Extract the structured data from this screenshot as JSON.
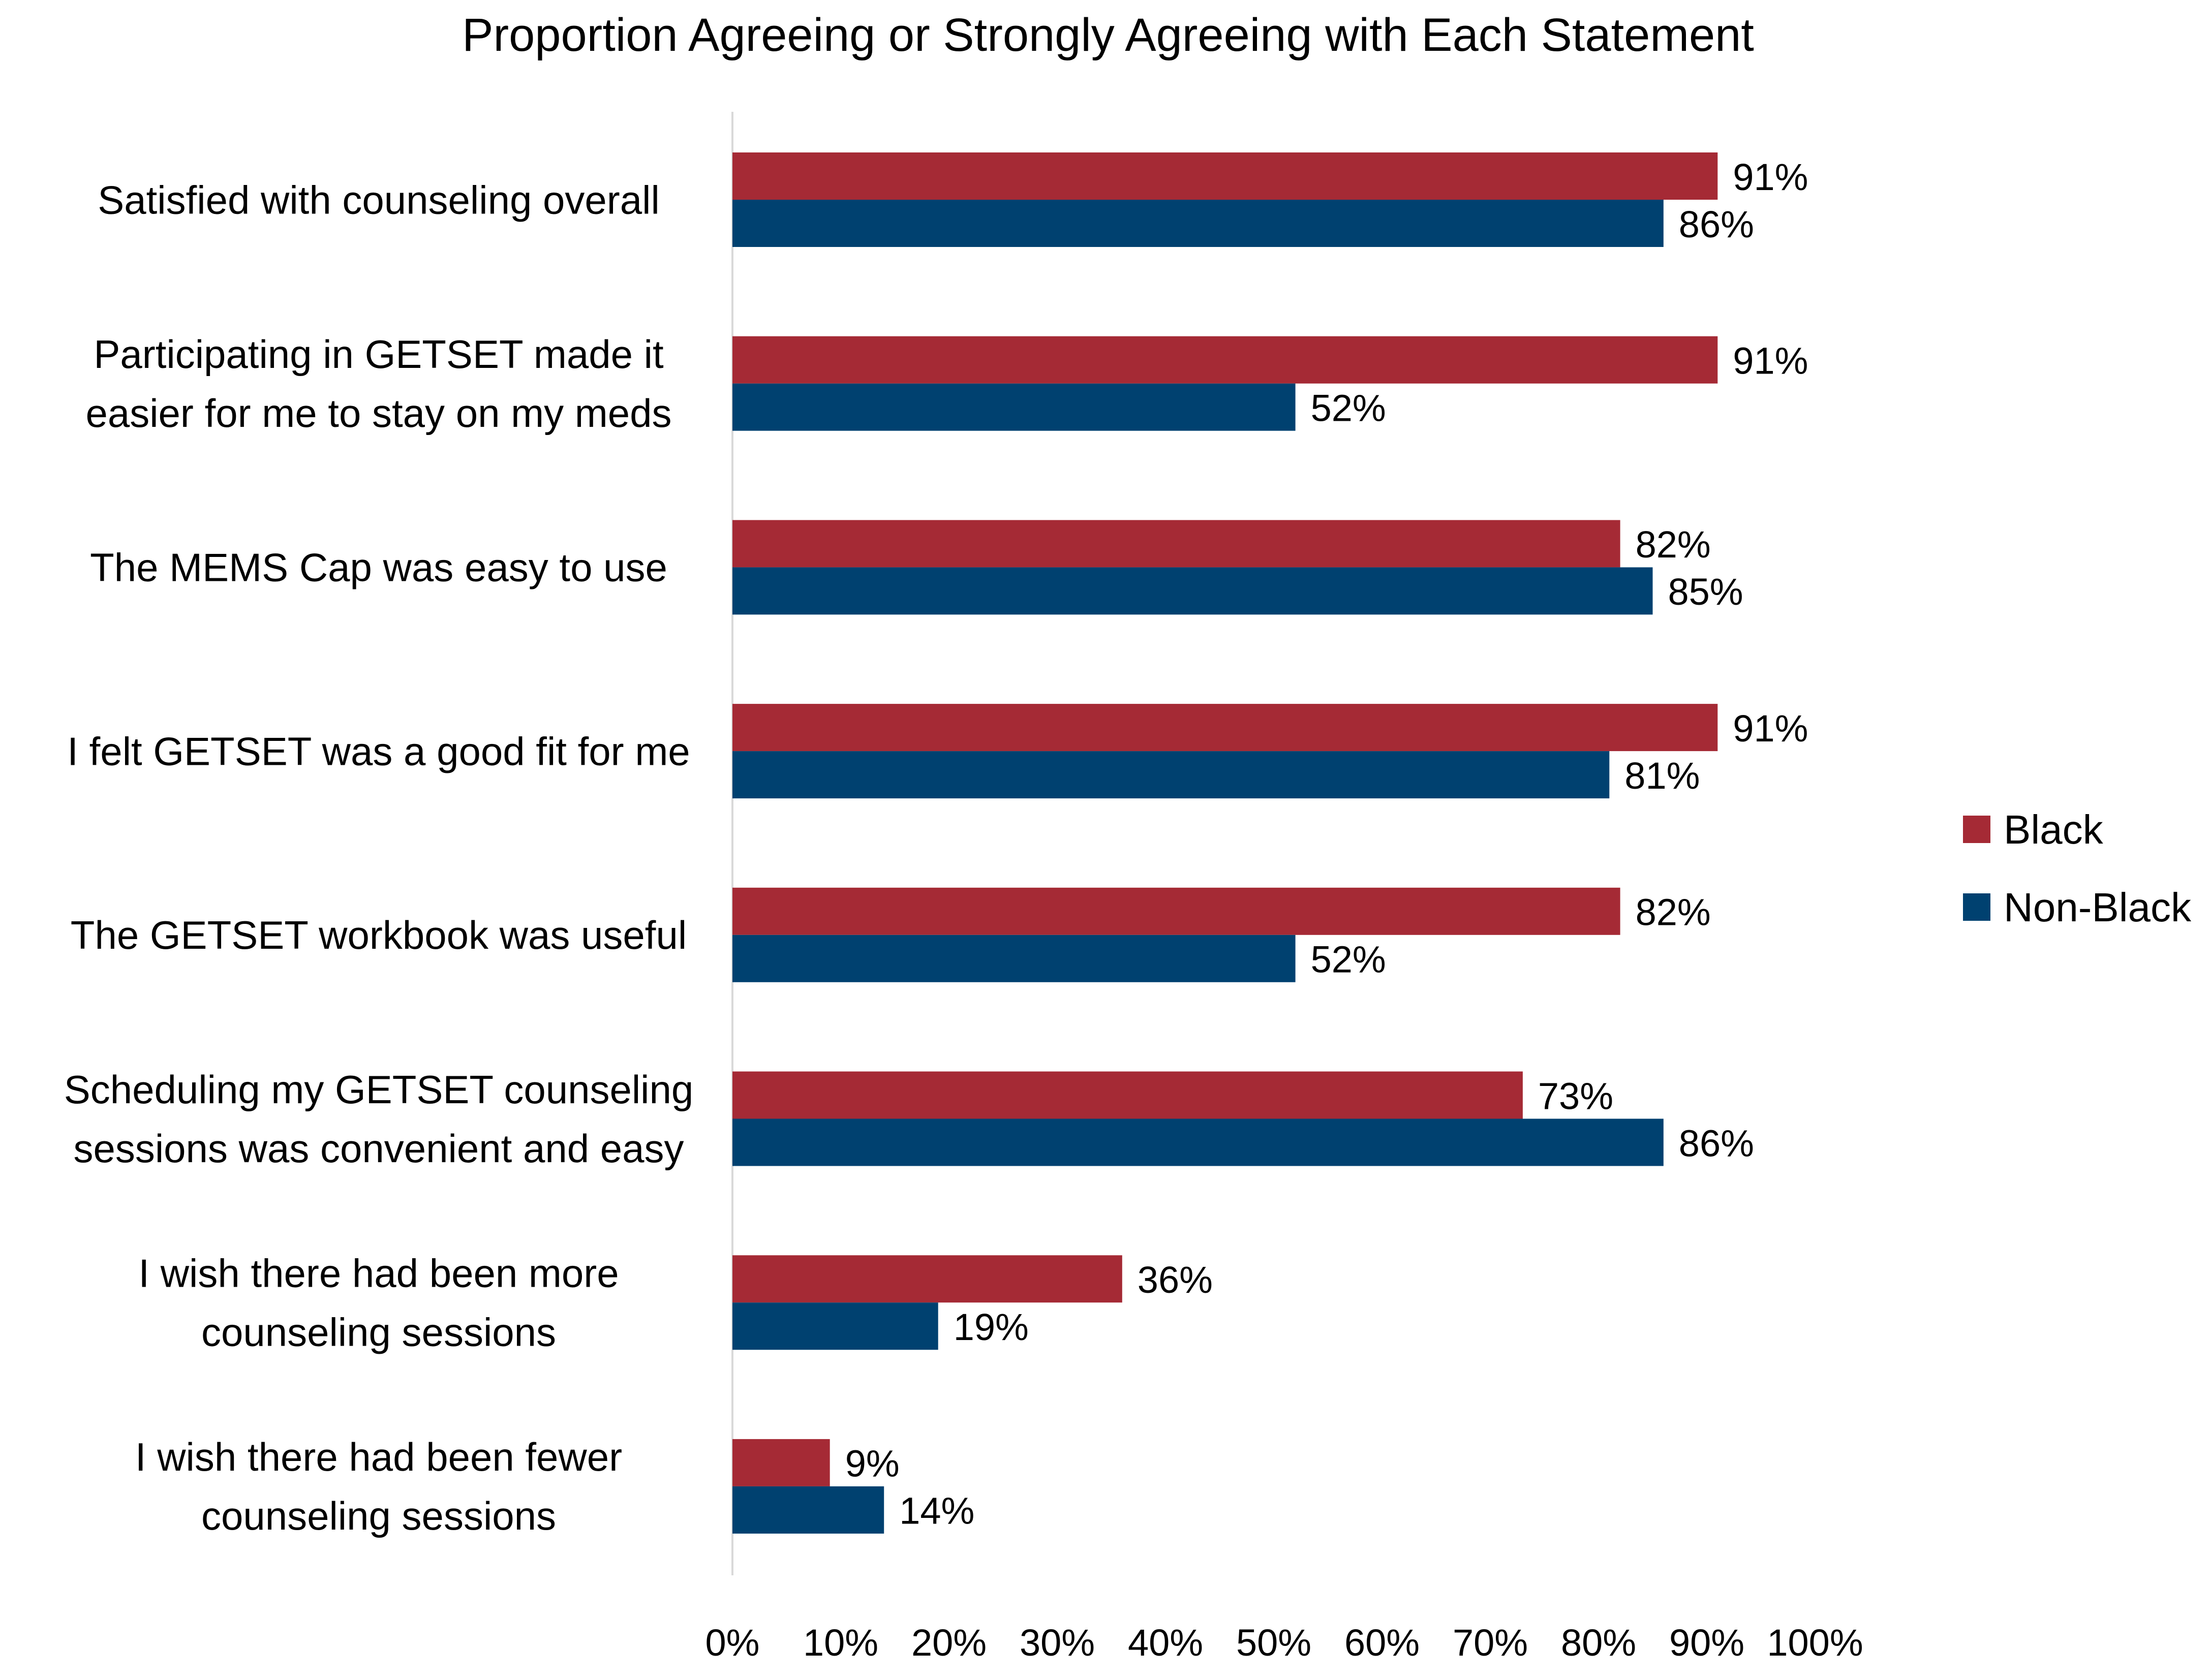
{
  "chart_data": {
    "type": "bar",
    "orientation": "horizontal",
    "title": "Proportion Agreeing or Strongly Agreeing with Each Statement",
    "xlabel": "",
    "ylabel": "",
    "xlim": [
      0,
      100
    ],
    "x_ticks": [
      "0%",
      "10%",
      "20%",
      "30%",
      "40%",
      "50%",
      "60%",
      "70%",
      "80%",
      "90%",
      "100%"
    ],
    "grid": false,
    "legend_position": "right",
    "value_suffix": "%",
    "categories": [
      [
        "Satisfied with counseling overall"
      ],
      [
        "Participating in GETSET made it",
        "easier for me to stay on my meds"
      ],
      [
        "The MEMS Cap was easy to use"
      ],
      [
        "I felt GETSET was a good fit for me"
      ],
      [
        "The GETSET workbook was useful"
      ],
      [
        "Scheduling my GETSET counseling",
        "sessions was convenient and easy"
      ],
      [
        "I wish there had been more",
        "counseling sessions"
      ],
      [
        "I wish there had been fewer",
        "counseling sessions"
      ]
    ],
    "series": [
      {
        "name": "Black",
        "color": "#a52a35",
        "values": [
          91,
          91,
          82,
          91,
          82,
          73,
          36,
          9
        ]
      },
      {
        "name": "Non-Black",
        "color": "#004170",
        "values": [
          86,
          52,
          85,
          81,
          52,
          86,
          19,
          14
        ]
      }
    ]
  }
}
